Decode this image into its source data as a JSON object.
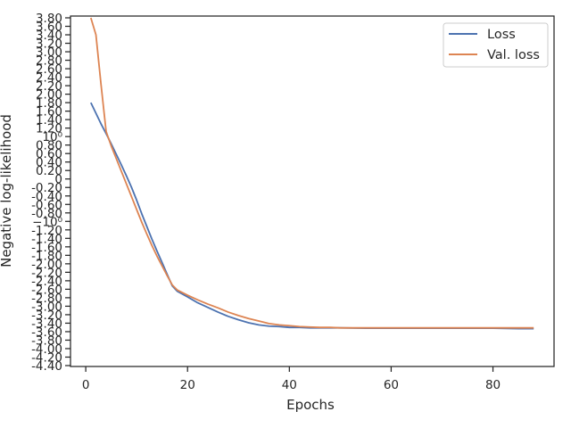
{
  "chart_data": {
    "type": "line",
    "title": "",
    "xlabel": "Epochs",
    "ylabel": "Negative log-likelihood",
    "xlim": [
      -3,
      92
    ],
    "x_ticks": [
      0,
      20,
      40,
      60,
      80
    ],
    "y_ticks": [
      "3.80",
      "3.60",
      "3.40",
      "3.20",
      "3.00",
      "2.80",
      "2.60",
      "2.40",
      "2.20",
      "2.00",
      "1.80",
      "1.60",
      "1.40",
      "1.20",
      "10⁰",
      "0.80",
      "0.60",
      "0.40",
      "0.20",
      "0",
      "-0.20",
      "-0.40",
      "-0.60",
      "-0.80",
      "−10⁰",
      "-1.20",
      "-1.40",
      "-1.60",
      "-1.80",
      "-2.00",
      "-2.20",
      "-2.40",
      "-2.60",
      "-2.80",
      "-3.00",
      "-3.20",
      "-3.40",
      "-3.60",
      "-3.80",
      "-4.00",
      "-4.20",
      "-4.40"
    ],
    "ylim": [
      -4.4,
      3.8
    ],
    "grid": false,
    "legend_position": "top-right",
    "colors": {
      "Loss": "#4c72b0",
      "Val. loss": "#dd8452"
    },
    "series": [
      {
        "name": "Loss",
        "x": [
          1,
          2,
          3,
          4,
          5,
          6,
          7,
          8,
          9,
          10,
          11,
          12,
          13,
          14,
          15,
          16,
          17,
          18,
          20,
          22,
          24,
          26,
          28,
          30,
          32,
          34,
          36,
          38,
          40,
          42,
          44,
          46,
          48,
          50,
          55,
          60,
          65,
          70,
          75,
          80,
          85,
          88
        ],
        "y": [
          1.8,
          1.55,
          1.3,
          1.07,
          0.83,
          0.58,
          0.33,
          0.07,
          -0.2,
          -0.5,
          -0.82,
          -1.12,
          -1.42,
          -1.7,
          -1.97,
          -2.25,
          -2.52,
          -2.65,
          -2.78,
          -2.92,
          -3.03,
          -3.14,
          -3.24,
          -3.32,
          -3.39,
          -3.44,
          -3.47,
          -3.48,
          -3.5,
          -3.5,
          -3.51,
          -3.51,
          -3.51,
          -3.51,
          -3.52,
          -3.52,
          -3.52,
          -3.52,
          -3.52,
          -3.52,
          -3.53,
          -3.53
        ]
      },
      {
        "name": "Val. loss",
        "x": [
          1,
          2,
          3,
          4,
          5,
          6,
          7,
          8,
          9,
          10,
          11,
          12,
          13,
          14,
          15,
          16,
          17,
          18,
          20,
          22,
          24,
          26,
          28,
          30,
          32,
          34,
          36,
          38,
          40,
          42,
          44,
          46,
          48,
          50,
          55,
          60,
          65,
          70,
          75,
          80,
          85,
          88
        ],
        "y": [
          3.8,
          3.4,
          2.23,
          1.12,
          0.78,
          0.48,
          0.18,
          -0.12,
          -0.42,
          -0.72,
          -1.02,
          -1.3,
          -1.57,
          -1.82,
          -2.05,
          -2.28,
          -2.5,
          -2.62,
          -2.74,
          -2.85,
          -2.95,
          -3.04,
          -3.14,
          -3.22,
          -3.29,
          -3.35,
          -3.41,
          -3.44,
          -3.46,
          -3.48,
          -3.49,
          -3.5,
          -3.5,
          -3.51,
          -3.51,
          -3.51,
          -3.51,
          -3.51,
          -3.51,
          -3.51,
          -3.51,
          -3.51
        ]
      }
    ]
  }
}
